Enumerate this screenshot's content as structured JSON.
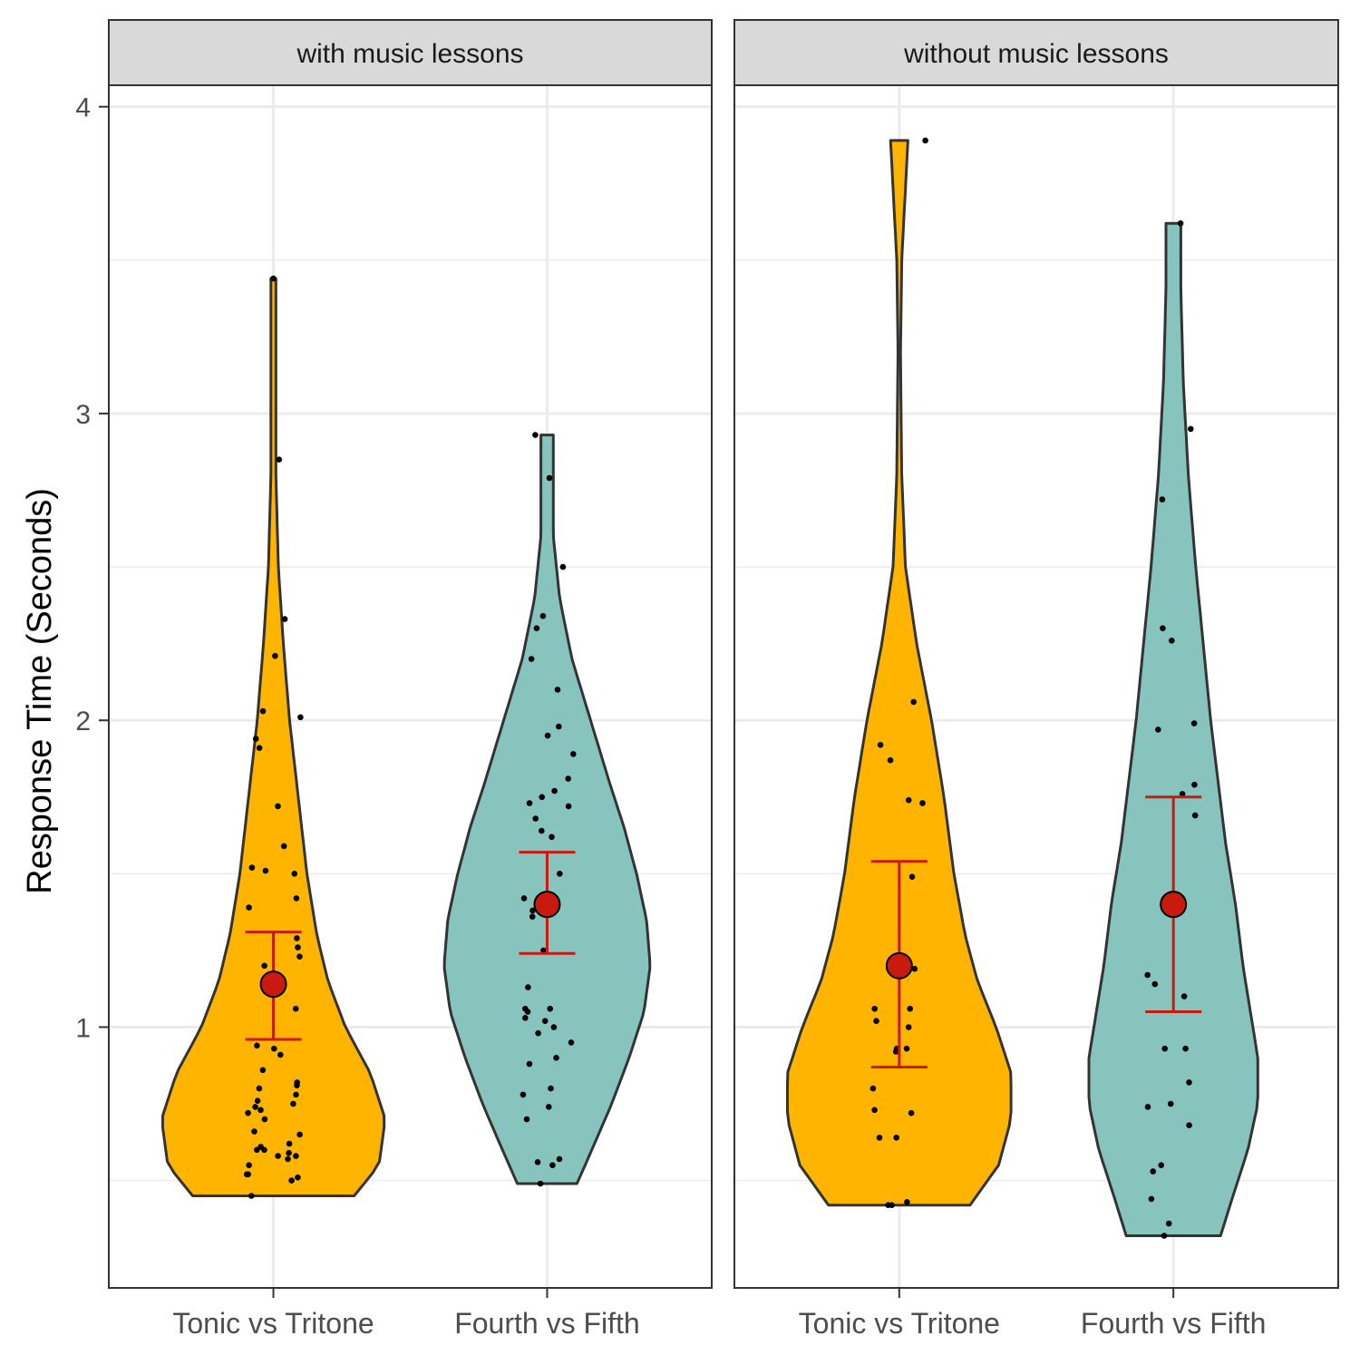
{
  "chart_data": {
    "type": "violin",
    "ylabel": "Response Time (Seconds)",
    "xlabel": "",
    "ylim": [
      0.15,
      4.07
    ],
    "yticks": [
      1,
      2,
      3,
      4
    ],
    "grid": true,
    "legend": "none",
    "colors": {
      "Tonic vs Tritone": "#FFB500",
      "Fourth vs Fifth": "#87C4BE",
      "mean_marker": "#C91A10",
      "points": "#000000",
      "strip_fill": "#d9d9d9"
    },
    "categories": [
      "Tonic vs Tritone",
      "Fourth vs Fifth"
    ],
    "panels": [
      {
        "title": "with music lessons",
        "groups": [
          {
            "category": "Tonic vs Tritone",
            "range": [
              0.45,
              3.44
            ],
            "mean": 1.14,
            "ci_low": 0.96,
            "ci_high": 1.31,
            "density": [
              [
                0.45,
                0.65
              ],
              [
                0.55,
                0.85
              ],
              [
                0.7,
                0.9
              ],
              [
                0.85,
                0.78
              ],
              [
                1.0,
                0.58
              ],
              [
                1.15,
                0.44
              ],
              [
                1.3,
                0.35
              ],
              [
                1.5,
                0.27
              ],
              [
                1.75,
                0.2
              ],
              [
                2.0,
                0.13
              ],
              [
                2.25,
                0.08
              ],
              [
                2.5,
                0.04
              ],
              [
                2.8,
                0.02
              ],
              [
                3.1,
                0.02
              ],
              [
                3.44,
                0.02
              ]
            ],
            "points": [
              0.45,
              0.5,
              0.51,
              0.52,
              0.52,
              0.55,
              0.57,
              0.58,
              0.58,
              0.59,
              0.6,
              0.6,
              0.61,
              0.62,
              0.65,
              0.66,
              0.7,
              0.72,
              0.73,
              0.74,
              0.75,
              0.76,
              0.78,
              0.8,
              0.81,
              0.82,
              0.86,
              0.91,
              0.93,
              0.94,
              1.06,
              1.2,
              1.23,
              1.26,
              1.29,
              1.39,
              1.42,
              1.5,
              1.51,
              1.52,
              1.59,
              1.72,
              1.91,
              1.94,
              2.01,
              2.03,
              2.21,
              2.33,
              2.85,
              3.44
            ]
          },
          {
            "category": "Fourth vs Fifth",
            "range": [
              0.49,
              2.93
            ],
            "mean": 1.4,
            "ci_low": 1.24,
            "ci_high": 1.57,
            "density": [
              [
                0.49,
                0.24
              ],
              [
                0.6,
                0.36
              ],
              [
                0.75,
                0.52
              ],
              [
                0.9,
                0.66
              ],
              [
                1.05,
                0.78
              ],
              [
                1.2,
                0.83
              ],
              [
                1.35,
                0.8
              ],
              [
                1.5,
                0.72
              ],
              [
                1.65,
                0.62
              ],
              [
                1.8,
                0.5
              ],
              [
                2.0,
                0.35
              ],
              [
                2.2,
                0.2
              ],
              [
                2.4,
                0.1
              ],
              [
                2.6,
                0.05
              ],
              [
                2.8,
                0.05
              ],
              [
                2.93,
                0.05
              ]
            ],
            "points": [
              0.49,
              0.55,
              0.56,
              0.57,
              0.7,
              0.74,
              0.78,
              0.8,
              0.88,
              0.9,
              0.95,
              0.98,
              1.0,
              1.02,
              1.03,
              1.05,
              1.06,
              1.06,
              1.13,
              1.25,
              1.36,
              1.38,
              1.41,
              1.42,
              1.5,
              1.62,
              1.64,
              1.68,
              1.72,
              1.73,
              1.75,
              1.77,
              1.81,
              1.89,
              1.95,
              1.98,
              2.1,
              2.2,
              2.3,
              2.34,
              2.5,
              2.79,
              2.93
            ]
          }
        ]
      },
      {
        "title": "without music lessons",
        "groups": [
          {
            "category": "Tonic vs Tritone",
            "range": [
              0.42,
              3.89
            ],
            "mean": 1.2,
            "ci_low": 0.87,
            "ci_high": 1.54,
            "density": [
              [
                0.42,
                0.57
              ],
              [
                0.55,
                0.8
              ],
              [
                0.7,
                0.9
              ],
              [
                0.85,
                0.9
              ],
              [
                1.0,
                0.78
              ],
              [
                1.15,
                0.63
              ],
              [
                1.3,
                0.53
              ],
              [
                1.5,
                0.44
              ],
              [
                1.75,
                0.36
              ],
              [
                2.0,
                0.26
              ],
              [
                2.25,
                0.14
              ],
              [
                2.5,
                0.05
              ],
              [
                2.8,
                0.02
              ],
              [
                3.2,
                0.01
              ],
              [
                3.5,
                0.02
              ],
              [
                3.89,
                0.07
              ]
            ],
            "points": [
              0.42,
              0.42,
              0.43,
              0.64,
              0.64,
              0.72,
              0.73,
              0.8,
              0.92,
              0.93,
              0.93,
              1.0,
              1.02,
              1.06,
              1.06,
              1.19,
              1.49,
              1.73,
              1.74,
              1.87,
              1.92,
              2.06,
              3.89
            ]
          },
          {
            "category": "Fourth vs Fifth",
            "range": [
              0.32,
              3.62
            ],
            "mean": 1.4,
            "ci_low": 1.05,
            "ci_high": 1.75,
            "density": [
              [
                0.32,
                0.38
              ],
              [
                0.45,
                0.48
              ],
              [
                0.6,
                0.6
              ],
              [
                0.75,
                0.68
              ],
              [
                0.9,
                0.68
              ],
              [
                1.05,
                0.62
              ],
              [
                1.2,
                0.56
              ],
              [
                1.4,
                0.5
              ],
              [
                1.6,
                0.42
              ],
              [
                1.8,
                0.36
              ],
              [
                2.0,
                0.3
              ],
              [
                2.25,
                0.24
              ],
              [
                2.5,
                0.18
              ],
              [
                2.8,
                0.12
              ],
              [
                3.1,
                0.08
              ],
              [
                3.4,
                0.06
              ],
              [
                3.62,
                0.06
              ]
            ],
            "points": [
              0.32,
              0.36,
              0.44,
              0.53,
              0.55,
              0.68,
              0.74,
              0.75,
              0.82,
              0.93,
              0.93,
              1.1,
              1.14,
              1.17,
              1.69,
              1.76,
              1.79,
              1.97,
              1.99,
              2.26,
              2.3,
              2.72,
              2.95,
              3.62
            ]
          }
        ]
      }
    ]
  }
}
